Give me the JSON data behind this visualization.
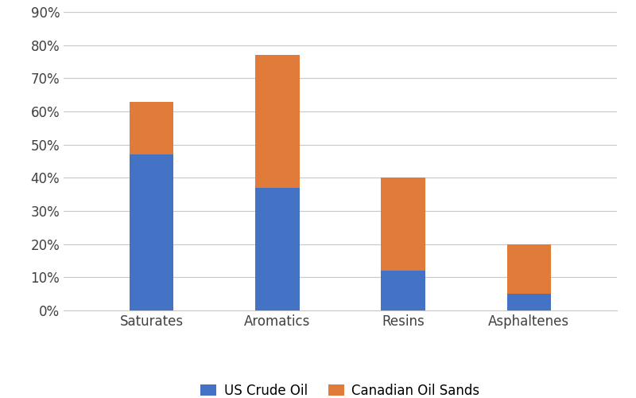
{
  "categories": [
    "Saturates",
    "Aromatics",
    "Resins",
    "Asphaltenes"
  ],
  "us_crude_oil": [
    0.47,
    0.37,
    0.12,
    0.05
  ],
  "canadian_oil_sands": [
    0.16,
    0.4,
    0.28,
    0.15
  ],
  "us_color": "#4472C4",
  "canadian_color": "#E07B39",
  "ylim": [
    0,
    0.9
  ],
  "yticks": [
    0.0,
    0.1,
    0.2,
    0.3,
    0.4,
    0.5,
    0.6,
    0.7,
    0.8,
    0.9
  ],
  "legend_labels": [
    "US Crude Oil",
    "Canadian Oil Sands"
  ],
  "background_color": "#ffffff",
  "grid_color": "#c8c8c8",
  "bar_width": 0.35,
  "tick_fontsize": 12,
  "legend_fontsize": 12
}
